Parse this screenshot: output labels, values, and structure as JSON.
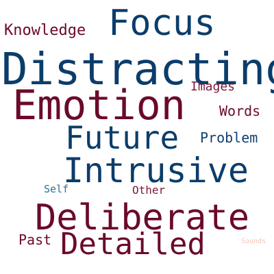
{
  "words": [
    {
      "text": "Focus",
      "color": "#0b3d6b"
    },
    {
      "text": "Knowledge",
      "color": "#6b0a2a"
    },
    {
      "text": "Distracting",
      "color": "#0b3d6b"
    },
    {
      "text": "Emotion",
      "color": "#6b0a2a"
    },
    {
      "text": "Images",
      "color": "#7a1a3a"
    },
    {
      "text": "Words",
      "color": "#6b0a2a"
    },
    {
      "text": "Future",
      "color": "#0b3d6b"
    },
    {
      "text": "Problem",
      "color": "#0f3f6f"
    },
    {
      "text": "Intrusive",
      "color": "#0b3d6b"
    },
    {
      "text": "Self",
      "color": "#2f6f96"
    },
    {
      "text": "Other",
      "color": "#7a1a3a"
    },
    {
      "text": "Deliberate",
      "color": "#6b0a2a"
    },
    {
      "text": "Past",
      "color": "#6b0a2a"
    },
    {
      "text": "Detailed",
      "color": "#6b0a2a"
    },
    {
      "text": "Sounds",
      "color": "#f2c3b8"
    }
  ]
}
